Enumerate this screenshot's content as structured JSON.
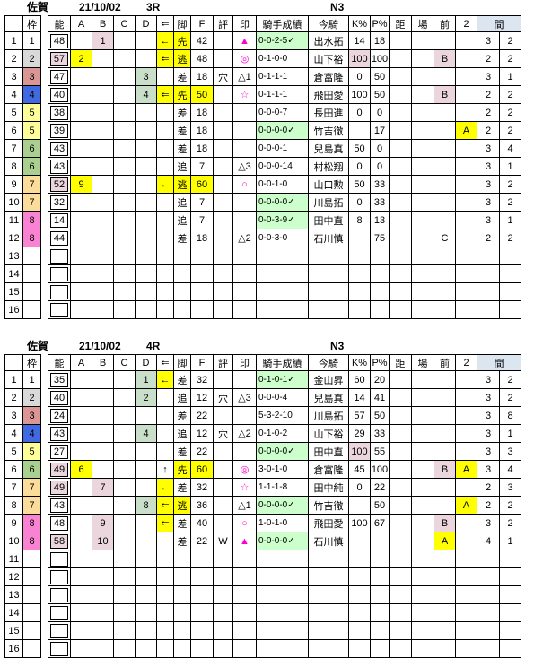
{
  "colors": {
    "yellow": "#ffff00",
    "pink": "#ecd6dd",
    "cellGreen": "#c9dfc9",
    "recGreen": "#ccffcc",
    "magenta": "#ff00cc",
    "kanBlue": "#dce6f1",
    "waku": [
      "#ffffff",
      "#ffffff",
      "#d9d9d9",
      "#da9694",
      "#4169e1",
      "#ffff99",
      "#a9d08e",
      "#fbdc9b",
      "#fa82d2"
    ]
  },
  "header_labels": {
    "blank": "",
    "waku": "枠",
    "no": "能",
    "a": "A",
    "b": "B",
    "c": "C",
    "d": "D",
    "arrow": "⇐",
    "kyaku": "脚",
    "f": "F",
    "hyo": "評",
    "in": "印",
    "seiseki": "騎手成績",
    "kishu": "今騎",
    "k": "K%",
    "p": "P%",
    "kyo": "距",
    "ba": "場",
    "mae": "前",
    "two": "2",
    "kan": "間"
  },
  "race_tables": [
    {
      "track": "佐賀",
      "date": "21/10/02",
      "race": "3R",
      "klass": "N3",
      "rows": [
        {
          "n": "1",
          "w": "1",
          "wc": 1,
          "no": "48",
          "b": "1",
          "ar": "←",
          "ky": "先",
          "f": "42",
          "mk": "▲",
          "ss": "0-0-2-5✓",
          "ks": "出水拓",
          "k": "14",
          "p": "18",
          "k1": "3",
          "k2": "2",
          "hl": {
            "b": "p",
            "ar": "y",
            "ky": "y",
            "mk": "m",
            "ss": "G"
          }
        },
        {
          "n": "2",
          "w": "2",
          "wc": 2,
          "no": "57",
          "a": "2",
          "ar": "⇐",
          "ky": "逃",
          "f": "48",
          "mk": "◎",
          "ss": "0-1-0-0",
          "ks": "山下裕",
          "k": "100",
          "p": "100",
          "mae": "B",
          "k1": "2",
          "k2": "2",
          "hl": {
            "no": "p",
            "a": "y",
            "ar": "y",
            "ky": "y",
            "mk": "m",
            "k": "p",
            "mae": "p"
          }
        },
        {
          "n": "3",
          "w": "3",
          "wc": 3,
          "no": "47",
          "d": "3",
          "ky": "差",
          "f": "18",
          "hy": "穴",
          "mk": "△1",
          "ss": "0-1-1-1",
          "ks": "倉富隆",
          "k": "0",
          "p": "50",
          "k1": "3",
          "k2": "1",
          "hl": {
            "d": "g"
          }
        },
        {
          "n": "4",
          "w": "4",
          "wc": 4,
          "no": "40",
          "d": "4",
          "ar": "⇐",
          "ky": "先",
          "f": "50",
          "mk": "☆",
          "ss": "0-1-1-1",
          "ks": "飛田愛",
          "k": "100",
          "p": "50",
          "mae": "B",
          "k1": "2",
          "k2": "2",
          "hl": {
            "d": "g",
            "ar": "y",
            "ky": "y",
            "f": "y",
            "mk": "m",
            "mae": "p"
          }
        },
        {
          "n": "5",
          "w": "5",
          "wc": 5,
          "no": "38",
          "ky": "差",
          "f": "18",
          "ss": "0-0-0-7",
          "ks": "長田進",
          "k": "0",
          "p": "0",
          "k1": "2",
          "k2": "2",
          "hl": {}
        },
        {
          "n": "6",
          "w": "5",
          "wc": 5,
          "no": "39",
          "ky": "差",
          "f": "18",
          "ss": "0-0-0-0✓",
          "ks": "竹吉徹",
          "p": "17",
          "c2": "A",
          "k1": "2",
          "k2": "2",
          "hl": {
            "ss": "G",
            "c2": "y"
          }
        },
        {
          "n": "7",
          "w": "6",
          "wc": 6,
          "no": "43",
          "ky": "差",
          "f": "18",
          "ss": "0-0-0-1",
          "ks": "兒島真",
          "k": "50",
          "p": "0",
          "k1": "3",
          "k2": "4",
          "hl": {}
        },
        {
          "n": "8",
          "w": "6",
          "wc": 6,
          "no": "43",
          "ky": "追",
          "f": "7",
          "mk": "△3",
          "ss": "0-0-0-14",
          "ks": "村松翔",
          "k": "0",
          "p": "0",
          "k1": "3",
          "k2": "1",
          "hl": {}
        },
        {
          "n": "9",
          "w": "7",
          "wc": 7,
          "no": "52",
          "a": "9",
          "ar": "←",
          "ky": "逃",
          "f": "60",
          "mk": "○",
          "ss": "0-0-1-0",
          "ks": "山口勲",
          "k": "50",
          "p": "33",
          "k1": "3",
          "k2": "2",
          "hl": {
            "no": "p",
            "a": "y",
            "ar": "y",
            "ky": "y",
            "f": "y",
            "mk": "m"
          }
        },
        {
          "n": "10",
          "w": "7",
          "wc": 7,
          "no": "32",
          "ky": "追",
          "f": "7",
          "ss": "0-0-0-0✓",
          "ks": "川島拓",
          "k": "0",
          "p": "33",
          "k1": "3",
          "k2": "2",
          "hl": {
            "ss": "G"
          }
        },
        {
          "n": "11",
          "w": "8",
          "wc": 8,
          "no": "14",
          "ky": "追",
          "f": "7",
          "ss": "0-0-3-9✓",
          "ks": "田中直",
          "k": "8",
          "p": "13",
          "k1": "3",
          "k2": "1",
          "hl": {
            "ss": "G"
          }
        },
        {
          "n": "12",
          "w": "8",
          "wc": 8,
          "no": "44",
          "ky": "差",
          "f": "18",
          "mk": "△2",
          "ss": "0-0-3-0",
          "ks": "石川慎",
          "p": "75",
          "mae": "C",
          "k1": "2",
          "k2": "2",
          "hl": {}
        },
        {
          "n": "13",
          "hl": {}
        },
        {
          "n": "14",
          "hl": {}
        },
        {
          "n": "15",
          "hl": {}
        },
        {
          "n": "16",
          "hl": {}
        }
      ]
    },
    {
      "track": "佐賀",
      "date": "21/10/02",
      "race": "4R",
      "klass": "N3",
      "rows": [
        {
          "n": "1",
          "w": "1",
          "wc": 1,
          "no": "35",
          "d": "1",
          "ar": "←",
          "ky": "差",
          "f": "32",
          "ss": "0-1-0-1✓",
          "ks": "金山昇",
          "k": "60",
          "p": "20",
          "k1": "3",
          "k2": "2",
          "hl": {
            "d": "g",
            "ar": "y",
            "ss": "G"
          }
        },
        {
          "n": "2",
          "w": "2",
          "wc": 2,
          "no": "40",
          "d": "2",
          "ky": "追",
          "f": "12",
          "hy": "穴",
          "mk": "△3",
          "ss": "0-0-0-4",
          "ks": "兒島真",
          "k": "14",
          "p": "41",
          "k1": "3",
          "k2": "2",
          "hl": {
            "d": "g"
          }
        },
        {
          "n": "3",
          "w": "3",
          "wc": 3,
          "no": "24",
          "ky": "差",
          "f": "22",
          "ss": "5-3-2-10",
          "ks": "川島拓",
          "k": "57",
          "p": "50",
          "k1": "3",
          "k2": "8",
          "hl": {}
        },
        {
          "n": "4",
          "w": "4",
          "wc": 4,
          "no": "43",
          "d": "4",
          "ky": "追",
          "f": "12",
          "hy": "穴",
          "mk": "△2",
          "ss": "0-1-0-2",
          "ks": "山下裕",
          "k": "29",
          "p": "33",
          "k1": "3",
          "k2": "1",
          "hl": {
            "d": "g"
          }
        },
        {
          "n": "5",
          "w": "5",
          "wc": 5,
          "no": "27",
          "ky": "差",
          "f": "22",
          "ss": "0-0-0-0✓",
          "ks": "田中直",
          "k": "100",
          "p": "55",
          "k1": "3",
          "k2": "3",
          "hl": {
            "ss": "G",
            "k": "p"
          }
        },
        {
          "n": "6",
          "w": "6",
          "wc": 6,
          "no": "49",
          "a": "6",
          "ar": "↑",
          "ky": "先",
          "f": "60",
          "mk": "◎",
          "ss": "3-0-1-0",
          "ks": "倉富隆",
          "k": "45",
          "p": "100",
          "mae": "B",
          "c2": "A",
          "k1": "3",
          "k2": "4",
          "hl": {
            "no": "p",
            "a": "y",
            "ky": "y",
            "f": "y",
            "mk": "m",
            "mae": "p",
            "c2": "y"
          }
        },
        {
          "n": "7",
          "w": "7",
          "wc": 7,
          "no": "49",
          "b": "7",
          "ar": "←",
          "ky": "差",
          "f": "32",
          "mk": "☆",
          "ss": "1-1-1-8",
          "ks": "田中純",
          "k": "0",
          "p": "22",
          "k1": "2",
          "k2": "3",
          "hl": {
            "no": "p",
            "b": "p",
            "ar": "y",
            "mk": "m"
          }
        },
        {
          "n": "8",
          "w": "7",
          "wc": 7,
          "no": "43",
          "d": "8",
          "ar": "⇐",
          "ky": "逃",
          "f": "36",
          "mk": "△1",
          "ss": "0-0-0-0✓",
          "ks": "竹吉徹",
          "p": "50",
          "c2": "A",
          "k1": "2",
          "k2": "2",
          "hl": {
            "d": "g",
            "ar": "y",
            "ky": "y",
            "ss": "G",
            "c2": "y"
          }
        },
        {
          "n": "9",
          "w": "8",
          "wc": 8,
          "no": "48",
          "b": "9",
          "ar": "⇐",
          "ky": "差",
          "f": "40",
          "mk": "○",
          "ss": "1-0-1-0",
          "ks": "飛田愛",
          "k": "100",
          "p": "67",
          "mae": "B",
          "k1": "3",
          "k2": "2",
          "hl": {
            "b": "p",
            "ar": "y",
            "mk": "m",
            "mae": "p"
          }
        },
        {
          "n": "10",
          "w": "8",
          "wc": 8,
          "no": "58",
          "b": "10",
          "ky": "差",
          "f": "22",
          "hy": "W",
          "mk": "▲",
          "ss": "0-0-0-0✓",
          "ks": "石川慎",
          "mae": "A",
          "k1": "4",
          "k2": "1",
          "hl": {
            "no": "p",
            "b": "p",
            "mk": "m",
            "ss": "G",
            "mae": "y"
          }
        },
        {
          "n": "11",
          "hl": {}
        },
        {
          "n": "12",
          "hl": {}
        },
        {
          "n": "13",
          "hl": {}
        },
        {
          "n": "14",
          "hl": {}
        },
        {
          "n": "15",
          "hl": {}
        },
        {
          "n": "16",
          "hl": {}
        }
      ]
    }
  ]
}
